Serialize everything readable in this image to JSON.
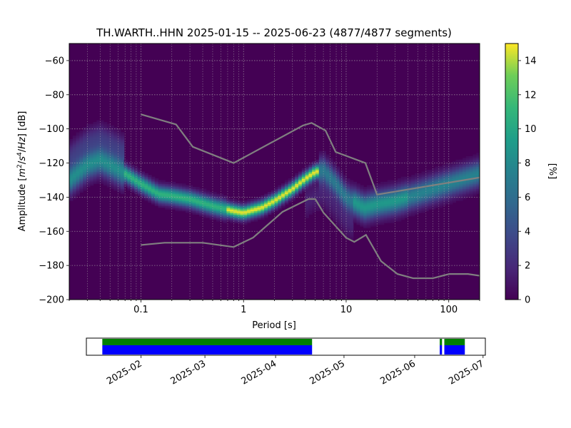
{
  "chart_data": [
    {
      "type": "heatmap",
      "title": "TH.WARTH..HHN   2025-01-15 -- 2025-06-23  (4877/4877 segments)",
      "xlabel": "Period [s]",
      "ylabel": "Amplitude [m²/s⁴/Hz] [dB]",
      "x_scale": "log",
      "xlim": [
        0.02,
        200
      ],
      "ylim": [
        -200,
        -50
      ],
      "x_ticks": [
        0.1,
        1,
        10,
        100
      ],
      "x_tick_labels": [
        "0.1",
        "1",
        "10",
        "100"
      ],
      "y_ticks": [
        -200,
        -180,
        -160,
        -140,
        -120,
        -100,
        -80,
        -60
      ],
      "y_tick_labels": [
        "−200",
        "−180",
        "−160",
        "−140",
        "−120",
        "−100",
        "−80",
        "−60"
      ],
      "grid": true,
      "colorbar": {
        "label": "[%]",
        "range": [
          0,
          15
        ],
        "ticks": [
          0,
          2,
          4,
          6,
          8,
          10,
          12,
          14
        ],
        "tick_labels": [
          "0",
          "2",
          "4",
          "6",
          "8",
          "10",
          "12",
          "14"
        ],
        "colormap": "viridis"
      },
      "ppsd_mode": [
        {
          "period": 0.02,
          "db": -130
        },
        {
          "period": 0.03,
          "db": -121
        },
        {
          "period": 0.04,
          "db": -118
        },
        {
          "period": 0.05,
          "db": -121
        },
        {
          "period": 0.07,
          "db": -126
        },
        {
          "period": 0.1,
          "db": -132
        },
        {
          "period": 0.15,
          "db": -138
        },
        {
          "period": 0.2,
          "db": -139
        },
        {
          "period": 0.3,
          "db": -141
        },
        {
          "period": 0.5,
          "db": -145
        },
        {
          "period": 0.8,
          "db": -148
        },
        {
          "period": 1.0,
          "db": -149
        },
        {
          "period": 1.5,
          "db": -146
        },
        {
          "period": 2,
          "db": -142
        },
        {
          "period": 3,
          "db": -135
        },
        {
          "period": 4,
          "db": -129
        },
        {
          "period": 5,
          "db": -125
        },
        {
          "period": 6,
          "db": -124
        },
        {
          "period": 8,
          "db": -132
        },
        {
          "period": 10,
          "db": -140
        },
        {
          "period": 15,
          "db": -146
        },
        {
          "period": 20,
          "db": -144
        },
        {
          "period": 30,
          "db": -142
        },
        {
          "period": 50,
          "db": -138
        },
        {
          "period": 100,
          "db": -132
        },
        {
          "period": 200,
          "db": -126
        }
      ],
      "noise_models": [
        {
          "name": "",
          "color": "#808080",
          "points": [
            {
              "period": 0.1,
              "db": -91.5
            },
            {
              "period": 0.22,
              "db": -97.4
            },
            {
              "period": 0.32,
              "db": -110.5
            },
            {
              "period": 0.8,
              "db": -120
            },
            {
              "period": 3.8,
              "db": -98
            },
            {
              "period": 4.6,
              "db": -96.5
            },
            {
              "period": 6.3,
              "db": -101
            },
            {
              "period": 7.9,
              "db": -113.5
            },
            {
              "period": 15.4,
              "db": -120
            },
            {
              "period": 20,
              "db": -138.5
            },
            {
              "period": 200,
              "db": -128.5
            }
          ]
        },
        {
          "name": "",
          "color": "#808080",
          "points": [
            {
              "period": 0.1,
              "db": -168
            },
            {
              "period": 0.17,
              "db": -166.7
            },
            {
              "period": 0.4,
              "db": -166.7
            },
            {
              "period": 0.8,
              "db": -169.2
            },
            {
              "period": 1.24,
              "db": -163.7
            },
            {
              "period": 2.4,
              "db": -148.6
            },
            {
              "period": 4.3,
              "db": -141.1
            },
            {
              "period": 5.0,
              "db": -141.1
            },
            {
              "period": 6.0,
              "db": -149
            },
            {
              "period": 10,
              "db": -163.8
            },
            {
              "period": 12,
              "db": -166.2
            },
            {
              "period": 15.6,
              "db": -162.1
            },
            {
              "period": 21.9,
              "db": -177.5
            },
            {
              "period": 31.6,
              "db": -185
            },
            {
              "period": 45,
              "db": -187.5
            },
            {
              "period": 70,
              "db": -187.5
            },
            {
              "period": 101,
              "db": -185
            },
            {
              "period": 154,
              "db": -185
            },
            {
              "period": 200,
              "db": -186
            }
          ]
        }
      ]
    },
    {
      "type": "timeline",
      "x_tick_labels": [
        "2025-02",
        "2025-03",
        "2025-04",
        "2025-05",
        "2025-06",
        "2025-07"
      ],
      "x_ticks": [
        "2025-02-01",
        "2025-03-01",
        "2025-04-01",
        "2025-05-01",
        "2025-06-01",
        "2025-07-01"
      ],
      "xlim": [
        "2025-01-08",
        "2025-07-02"
      ],
      "series": [
        {
          "color": "#008000",
          "intervals": [
            [
              "2025-01-15",
              "2025-04-17"
            ],
            [
              "2025-06-12",
              "2025-06-13"
            ],
            [
              "2025-06-14",
              "2025-06-23"
            ]
          ]
        },
        {
          "color": "#0000ff",
          "intervals": [
            [
              "2025-01-15",
              "2025-04-17"
            ],
            [
              "2025-06-12",
              "2025-06-13"
            ],
            [
              "2025-06-14",
              "2025-06-23"
            ]
          ]
        }
      ]
    }
  ]
}
